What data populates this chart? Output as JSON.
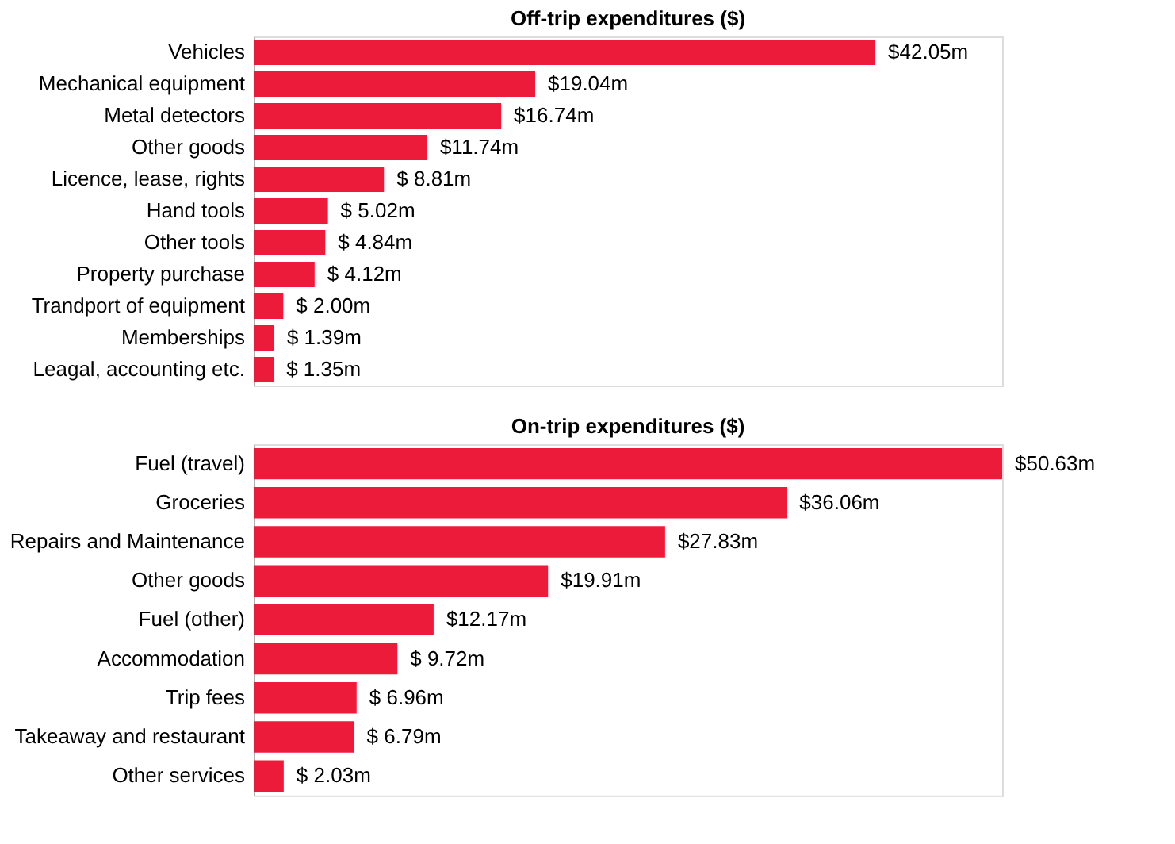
{
  "chart_data": [
    {
      "type": "bar",
      "orientation": "horizontal",
      "title": "Off-trip expenditures ($)",
      "color": "#ed1b3a",
      "categories": [
        "Vehicles",
        "Mechanical equipment",
        "Metal detectors",
        "Other goods",
        "Licence, lease, rights",
        "Hand tools",
        "Other tools",
        "Property purchase",
        "Trandport of equipment",
        "Memberships",
        "Leagal, accounting etc."
      ],
      "values": [
        42.05,
        19.04,
        16.74,
        11.74,
        8.81,
        5.02,
        4.84,
        4.12,
        2.0,
        1.39,
        1.35
      ],
      "value_labels": [
        "$42.05m",
        "$19.04m",
        "$16.74m",
        "$11.74m",
        "$ 8.81m",
        "$ 5.02m",
        "$ 4.84m",
        "$ 4.12m",
        "$ 2.00m",
        "$ 1.39m",
        "$ 1.35m"
      ]
    },
    {
      "type": "bar",
      "orientation": "horizontal",
      "title": "On-trip expenditures ($)",
      "color": "#ed1b3a",
      "categories": [
        "Fuel (travel)",
        "Groceries",
        "Repairs and Maintenance",
        "Other goods",
        "Fuel (other)",
        "Accommodation",
        "Trip fees",
        "Takeaway and restaurant",
        "Other services"
      ],
      "values": [
        50.63,
        36.06,
        27.83,
        19.91,
        12.17,
        9.72,
        6.96,
        6.79,
        2.03
      ],
      "value_labels": [
        "$50.63m",
        "$36.06m",
        "$27.83m",
        "$19.91m",
        "$12.17m",
        "$ 9.72m",
        "$ 6.96m",
        "$ 6.79m",
        "$ 2.03m"
      ]
    }
  ]
}
